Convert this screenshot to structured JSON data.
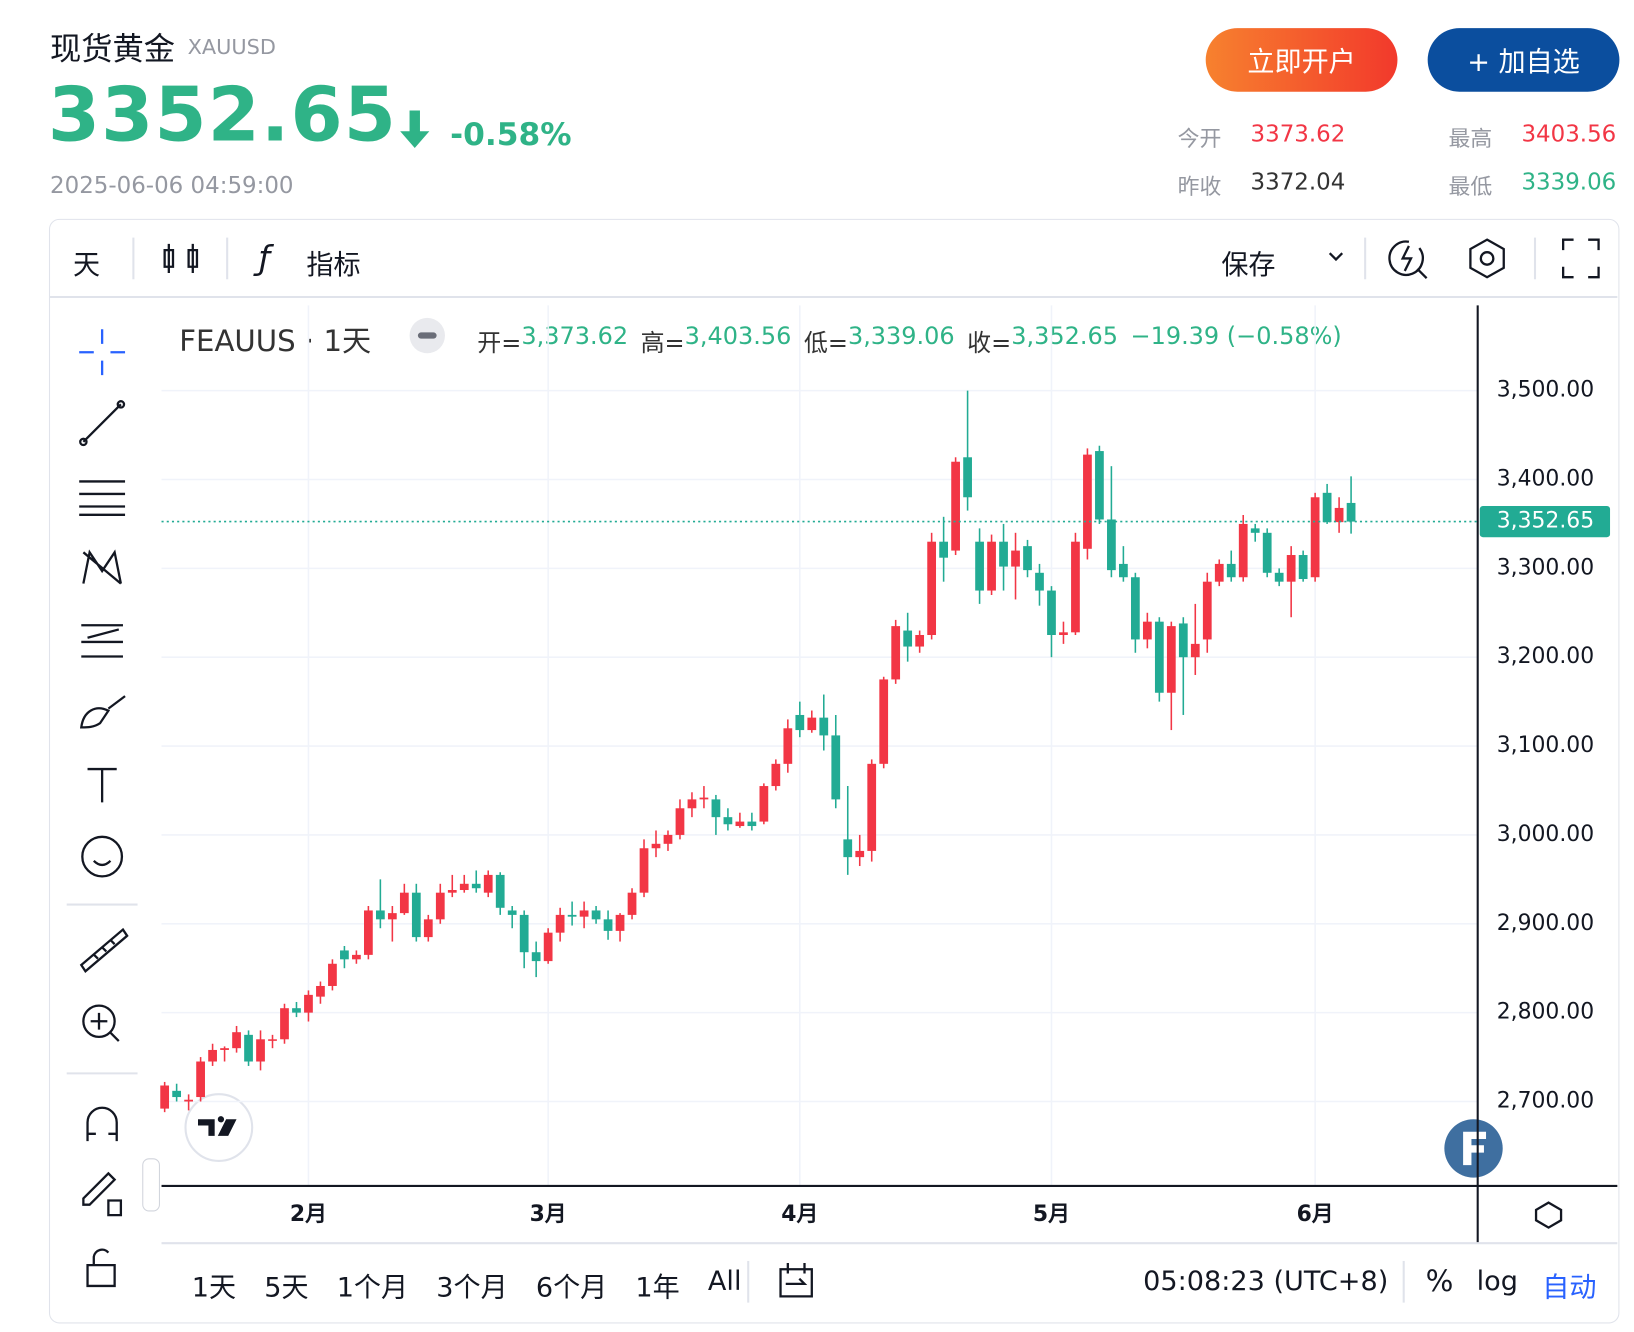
{
  "header": {
    "name": "现货黄金",
    "symbol": "XAUUSD",
    "price": "3352.65",
    "change": "-0.58%",
    "time": "2025-06-06 04:59:00"
  },
  "buttons": [
    "立即开户",
    "+ 加自选"
  ],
  "stats": [
    {
      "label": "今开",
      "value": "3373.62"
    },
    {
      "label": "最高",
      "value": "3403.56"
    },
    {
      "label": "昨收",
      "value": "3372.04"
    },
    {
      "label": "最低",
      "value": "3339.06"
    }
  ],
  "toolbar": {
    "interval": "天",
    "indicators": "指标",
    "save": "保存"
  },
  "chart_data": {
    "type": "candlestick",
    "title": "FEAUUS · 1天",
    "legend": [
      {
        "label": "开=",
        "value": "3,373.62"
      },
      {
        "label": "高=",
        "value": "3,403.56"
      },
      {
        "label": "低=",
        "value": "3,339.06"
      },
      {
        "label": "收=",
        "value": "3,352.65"
      }
    ],
    "change_text": "−19.39 (−0.58%)",
    "categories": [
      null,
      null,
      null,
      null,
      null,
      null,
      null,
      null,
      null,
      null,
      null,
      null,
      "2月",
      null,
      null,
      null,
      null,
      null,
      null,
      null,
      null,
      null,
      null,
      null,
      null,
      null,
      null,
      null,
      null,
      null,
      null,
      null,
      "3月",
      null,
      null,
      null,
      null,
      null,
      null,
      null,
      null,
      null,
      null,
      null,
      null,
      null,
      null,
      null,
      null,
      null,
      null,
      null,
      null,
      "4月",
      null,
      null,
      null,
      null,
      null,
      null,
      null,
      null,
      null,
      null,
      null,
      null,
      null,
      null,
      null,
      null,
      null,
      null,
      null,
      null,
      "5月",
      null,
      null,
      null,
      null,
      null,
      null,
      null,
      null,
      null,
      null,
      null,
      null,
      null,
      null,
      null,
      null,
      null,
      null,
      null,
      null,
      null,
      "6月",
      null,
      null,
      null
    ],
    "open": [
      2692,
      2712,
      2700,
      2705,
      2745,
      2758,
      2760,
      2775,
      2745,
      2770,
      2770,
      2805,
      2800,
      2818,
      2830,
      2870,
      2860,
      2865,
      2915,
      2905,
      2912,
      2935,
      2885,
      2905,
      2935,
      2938,
      2945,
      2935,
      2955,
      2915,
      2910,
      2868,
      2858,
      2890,
      2910,
      2908,
      2915,
      2905,
      2892,
      2910,
      2935,
      2985,
      2990,
      3000,
      3030,
      3040,
      3040,
      3020,
      3010,
      3015,
      3015,
      3055,
      3080,
      3135,
      3118,
      3132,
      3112,
      2995,
      2975,
      2982,
      3080,
      3175,
      3230,
      3212,
      3225,
      3330,
      3320,
      3425,
      3330,
      3275,
      3330,
      3302,
      3325,
      3295,
      3275,
      3225,
      3228,
      3322,
      3432,
      3355,
      3305,
      3290,
      3220,
      3240,
      3160,
      3238,
      3200,
      3220,
      3285,
      3305,
      3290,
      3345,
      3340,
      3295,
      3285,
      3315,
      3290,
      3385,
      3352,
      3373.62
    ],
    "high": [
      2722,
      2720,
      2708,
      2750,
      2765,
      2762,
      2785,
      2780,
      2780,
      2775,
      2810,
      2812,
      2825,
      2835,
      2860,
      2875,
      2870,
      2920,
      2950,
      2920,
      2945,
      2945,
      2910,
      2945,
      2955,
      2955,
      2960,
      2960,
      2958,
      2920,
      2915,
      2880,
      2895,
      2918,
      2925,
      2925,
      2920,
      2915,
      2912,
      2940,
      2995,
      3005,
      3005,
      3040,
      3048,
      3055,
      3045,
      3030,
      3025,
      3025,
      3058,
      3085,
      3130,
      3150,
      3140,
      3158,
      3135,
      3055,
      3000,
      3085,
      3178,
      3242,
      3250,
      3230,
      3340,
      3358,
      3425,
      3500,
      3345,
      3338,
      3350,
      3340,
      3332,
      3305,
      3280,
      3240,
      3340,
      3435,
      3438,
      3415,
      3325,
      3295,
      3250,
      3245,
      3240,
      3245,
      3260,
      3295,
      3310,
      3320,
      3360,
      3350,
      3345,
      3300,
      3325,
      3320,
      3385,
      3395,
      3380,
      3403.56
    ],
    "low": [
      2688,
      2700,
      2690,
      2700,
      2740,
      2745,
      2755,
      2740,
      2735,
      2760,
      2765,
      2795,
      2790,
      2810,
      2825,
      2850,
      2855,
      2860,
      2895,
      2880,
      2910,
      2880,
      2880,
      2900,
      2930,
      2935,
      2935,
      2930,
      2910,
      2895,
      2850,
      2840,
      2855,
      2880,
      2898,
      2895,
      2900,
      2882,
      2880,
      2905,
      2930,
      2975,
      2982,
      2995,
      3020,
      3030,
      3000,
      3005,
      3008,
      3005,
      3012,
      3050,
      3070,
      3110,
      3115,
      3095,
      3030,
      2955,
      2965,
      2970,
      3075,
      3170,
      3195,
      3205,
      3220,
      3285,
      3315,
      3365,
      3260,
      3270,
      3275,
      3265,
      3290,
      3258,
      3200,
      3215,
      3225,
      3310,
      3350,
      3290,
      3285,
      3205,
      3210,
      3150,
      3118,
      3135,
      3180,
      3205,
      3280,
      3285,
      3285,
      3330,
      3290,
      3280,
      3245,
      3285,
      3285,
      3350,
      3340,
      3339.06
    ],
    "close": [
      2718,
      2705,
      2702,
      2745,
      2758,
      2760,
      2778,
      2745,
      2770,
      2770,
      2805,
      2800,
      2820,
      2830,
      2855,
      2860,
      2865,
      2915,
      2905,
      2912,
      2935,
      2885,
      2905,
      2935,
      2938,
      2945,
      2940,
      2955,
      2918,
      2910,
      2868,
      2858,
      2890,
      2910,
      2908,
      2915,
      2905,
      2892,
      2910,
      2935,
      2985,
      2990,
      3000,
      3030,
      3040,
      3042,
      3020,
      3012,
      3015,
      3010,
      3055,
      3080,
      3120,
      3118,
      3132,
      3112,
      3040,
      2975,
      2982,
      3080,
      3175,
      3235,
      3212,
      3225,
      3330,
      3312,
      3420,
      3380,
      3275,
      3330,
      3302,
      3320,
      3298,
      3275,
      3225,
      3228,
      3330,
      3428,
      3355,
      3298,
      3290,
      3220,
      3240,
      3160,
      3235,
      3200,
      3215,
      3285,
      3305,
      3290,
      3350,
      3340,
      3295,
      3285,
      3315,
      3288,
      3380,
      3352,
      3368,
      3352.65
    ],
    "up_color": "#f23645",
    "down_color": "#22ab94",
    "ylim": [
      2605,
      3596
    ],
    "yticks": [
      {
        "value": 2700,
        "label": "2,700.00"
      },
      {
        "value": 2800,
        "label": "2,800.00"
      },
      {
        "value": 2900,
        "label": "2,900.00"
      },
      {
        "value": 3000,
        "label": "3,000.00"
      },
      {
        "value": 3100,
        "label": "3,100.00"
      },
      {
        "value": 3200,
        "label": "3,200.00"
      },
      {
        "value": 3300,
        "label": "3,300.00"
      },
      {
        "value": 3400,
        "label": "3,400.00"
      },
      {
        "value": 3500,
        "label": "3,500.00"
      }
    ],
    "last_price": {
      "value": 3352.65,
      "label": "3,352.65"
    },
    "grid": true,
    "log_scale": false
  },
  "footer": {
    "ranges": [
      "1天",
      "5天",
      "1个月",
      "3个月",
      "6个月",
      "1年",
      "All"
    ],
    "time": "05:08:23 (UTC+8)",
    "percent": "%",
    "log": "log",
    "auto": "自动"
  }
}
